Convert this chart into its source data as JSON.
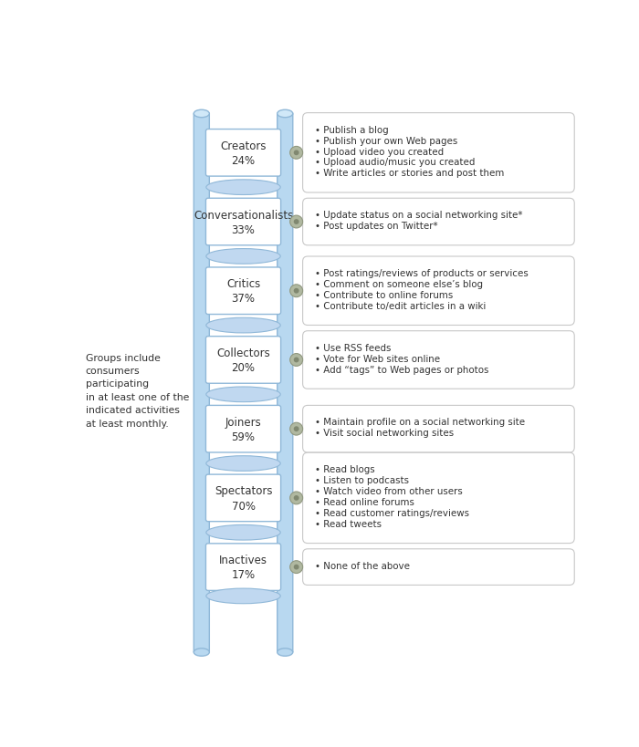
{
  "background_color": "#ffffff",
  "ladder_color": "#b8d8f0",
  "ladder_dark": "#90b8d8",
  "pillar_cap_color": "#d0e8f8",
  "rung_fill": "#ffffff",
  "rung_edge": "#90b8d8",
  "bar_fill": "#c0d8f0",
  "bar_edge": "#90b8d8",
  "box_fill": "#ffffff",
  "box_edge": "#c8c8c8",
  "connector_fill": "#b0b8a0",
  "connector_edge": "#909880",
  "connector_inner": "#808870",
  "text_color": "#333333",
  "bullet_char": "•",
  "left_note": "Groups include\nconsumers\nparticipating\nin at least one of the\nindicated activities\nat least monthly.",
  "rungs": [
    {
      "label": "Creators",
      "pct": "24%",
      "bullets": [
        "• Publish a blog",
        "• Publish your own Web pages",
        "• Upload video you created",
        "• Upload audio/music you created",
        "• Write articles or stories and post them"
      ]
    },
    {
      "label": "Conversationalists",
      "pct": "33%",
      "bullets": [
        "• Update status on a social networking site*",
        "• Post updates on Twitter*"
      ]
    },
    {
      "label": "Critics",
      "pct": "37%",
      "bullets": [
        "• Post ratings/reviews of products or services",
        "• Comment on someone else’s blog",
        "• Contribute to online forums",
        "• Contribute to/edit articles in a wiki"
      ]
    },
    {
      "label": "Collectors",
      "pct": "20%",
      "bullets": [
        "• Use RSS feeds",
        "• Vote for Web sites online",
        "• Add “tags” to Web pages or photos"
      ]
    },
    {
      "label": "Joiners",
      "pct": "59%",
      "bullets": [
        "• Maintain profile on a social networking site",
        "• Visit social networking sites"
      ]
    },
    {
      "label": "Spectators",
      "pct": "70%",
      "bullets": [
        "• Read blogs",
        "• Listen to podcasts",
        "• Watch video from other users",
        "• Read online forums",
        "• Read customer ratings/reviews",
        "• Read tweets"
      ]
    },
    {
      "label": "Inactives",
      "pct": "17%",
      "bullets": [
        "• None of the above"
      ]
    }
  ]
}
